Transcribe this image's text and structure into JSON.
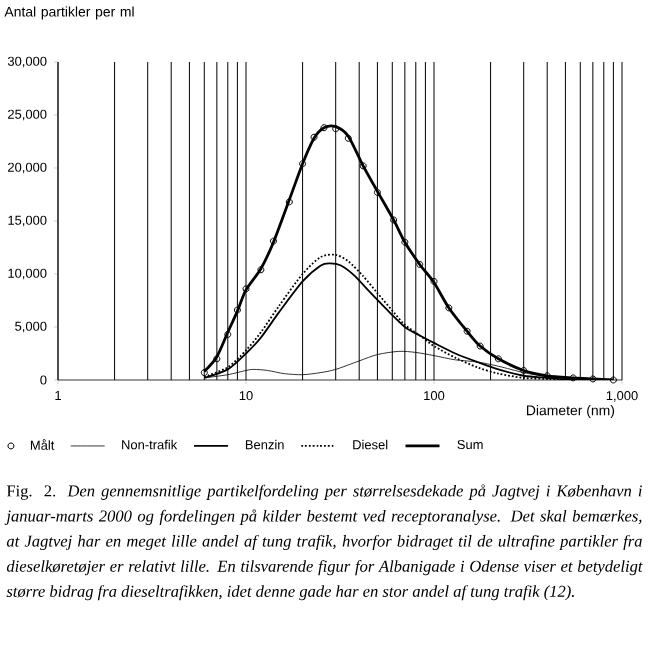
{
  "chart_data": {
    "type": "line",
    "ylabel": "Antal partikler per ml",
    "xlabel": "Diameter (nm)",
    "log": "x",
    "grid": "x",
    "legend": "bottom",
    "xlim": [
      1,
      1000
    ],
    "xticks": [
      1,
      10,
      100,
      {
        "value": 1000,
        "label": "1,000"
      }
    ],
    "ylim": [
      0,
      30000
    ],
    "yticks": [
      0,
      {
        "value": 5000,
        "label": "5,000"
      },
      {
        "value": 10000,
        "label": "10,000"
      },
      {
        "value": 15000,
        "label": "15,000"
      },
      {
        "value": 20000,
        "label": "20,000"
      },
      {
        "value": 25000,
        "label": "25,000"
      },
      {
        "value": 30000,
        "label": "30,000"
      }
    ],
    "series": [
      {
        "name": "Målt",
        "type": "scatter",
        "marker": "circle",
        "color": "#000000",
        "x": [
          6,
          7,
          8,
          9,
          10,
          12,
          14,
          17,
          20,
          23,
          26,
          30,
          35,
          42,
          50,
          61,
          70,
          84,
          100,
          120,
          150,
          176,
          220,
          300,
          400,
          550,
          700,
          900
        ],
        "values": [
          700,
          2000,
          4300,
          6600,
          8600,
          10400,
          13100,
          16800,
          20400,
          22900,
          23800,
          23700,
          22800,
          20200,
          17700,
          15100,
          13000,
          10900,
          9300,
          6800,
          4600,
          3200,
          2000,
          900,
          400,
          200,
          100,
          0
        ]
      },
      {
        "name": "Non-trafik",
        "line_style": "solid",
        "color": "#000000",
        "x": [
          6,
          8,
          10,
          11,
          13,
          16,
          20,
          25,
          30,
          40,
          50,
          65,
          80,
          100,
          130,
          170,
          220,
          300,
          400,
          550,
          700
        ],
        "values": [
          200,
          500,
          900,
          1000,
          900,
          600,
          500,
          700,
          1000,
          1800,
          2400,
          2700,
          2600,
          2300,
          1900,
          1700,
          1300,
          700,
          300,
          100,
          0
        ]
      },
      {
        "name": "Benzin",
        "line_style": "solid",
        "color": "#000000",
        "x": [
          6,
          8,
          10,
          12,
          15,
          20,
          25,
          28,
          32,
          38,
          45,
          55,
          70,
          84,
          100,
          130,
          170,
          220,
          300,
          400,
          550,
          700
        ],
        "values": [
          200,
          1000,
          2500,
          4000,
          6400,
          9300,
          10800,
          11000,
          10800,
          9800,
          8400,
          6800,
          5000,
          4200,
          3500,
          2500,
          1700,
          1000,
          400,
          200,
          0,
          0
        ]
      },
      {
        "name": "Diesel",
        "line_style": "dotted",
        "color": "#000000",
        "x": [
          6,
          8,
          10,
          12,
          15,
          20,
          25,
          30,
          35,
          42,
          50,
          61,
          70,
          84,
          100,
          130,
          170,
          220,
          300,
          400,
          550
        ],
        "values": [
          300,
          1200,
          2800,
          4500,
          7000,
          10000,
          11600,
          11800,
          11200,
          9800,
          8200,
          6400,
          5200,
          4200,
          3200,
          2100,
          1200,
          600,
          200,
          100,
          0
        ]
      },
      {
        "name": "Sum",
        "line_style": "solid",
        "color": "#000000",
        "x": [
          6,
          7,
          8,
          9,
          10,
          12,
          14,
          17,
          20,
          23,
          26,
          30,
          35,
          42,
          50,
          61,
          70,
          84,
          100,
          120,
          150,
          176,
          220,
          300,
          400,
          550,
          700,
          900
        ],
        "values": [
          800,
          2200,
          4500,
          6500,
          8500,
          10500,
          13000,
          17000,
          20400,
          22800,
          23800,
          23900,
          23000,
          20200,
          17800,
          15100,
          13000,
          10900,
          9200,
          6800,
          4600,
          3200,
          2000,
          900,
          400,
          200,
          100,
          0
        ]
      }
    ],
    "annotations": [
      "Fig. 2. *Den gennemsnitlige partikelfordeling per størrelsesdekade på Jagtvej i København i januar-marts 2000 og fordelingen på kilder bestemt ved receptoranalyse. Det skal bemærkes, at Jagtvej har en meget lille andel af tung trafik, hvorfor bidraget til de ultrafine partikler fra dieselkøretøjer er relativt lille. En tilsvarende figur for Albanigade i Odense viser et betydeligt større bidrag fra dieseltrafikken, idet denne gade har en stor andel af tung trafik (12).*"
    ]
  }
}
